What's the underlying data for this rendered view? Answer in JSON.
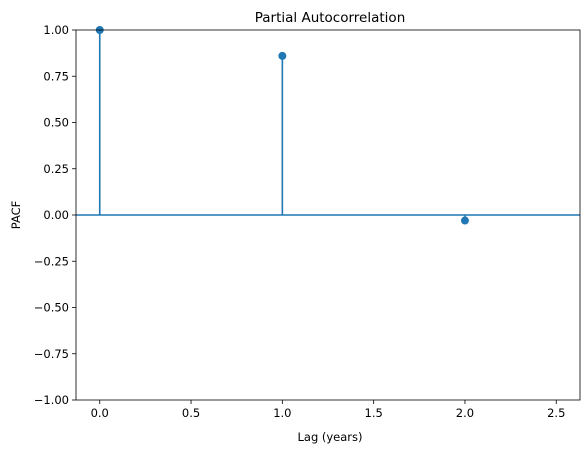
{
  "chart_data": {
    "type": "stem",
    "title": "Partial Autocorrelation",
    "xlabel": "Lag (years)",
    "ylabel": "PACF",
    "xlim": [
      -0.13,
      2.63
    ],
    "ylim": [
      -1.0,
      1.0
    ],
    "x_ticks": [
      0.0,
      0.5,
      1.0,
      1.5,
      2.0,
      2.5
    ],
    "x_tick_labels": [
      "0.0",
      "0.5",
      "1.0",
      "1.5",
      "2.0",
      "2.5"
    ],
    "y_ticks": [
      1.0,
      0.75,
      0.5,
      0.25,
      0.0,
      -0.25,
      -0.5,
      -0.75,
      -1.0
    ],
    "y_tick_labels": [
      "1.00",
      "0.75",
      "0.50",
      "0.25",
      "0.00",
      "−0.25",
      "−0.50",
      "−0.75",
      "−1.00"
    ],
    "x": [
      0.0,
      1.0,
      2.0
    ],
    "values": [
      1.0,
      0.86,
      -0.03
    ],
    "baseline": 0.0,
    "color": "#1f77b4",
    "grid": false
  }
}
